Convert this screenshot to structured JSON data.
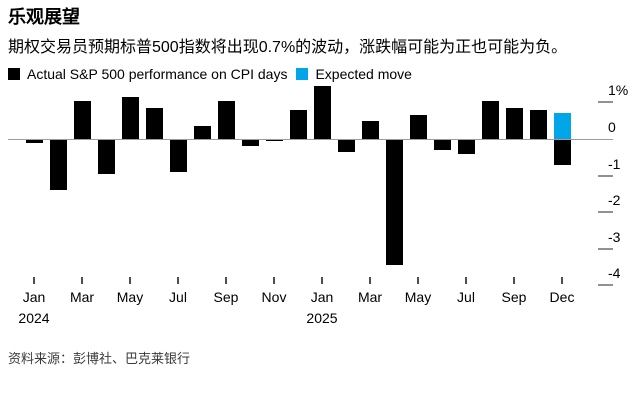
{
  "header": {
    "title": "乐观展望",
    "subtitle": "期权交易员预期标普500指数将出现0.7%的波动，涨跌幅可能为正也可能为负。"
  },
  "legend": {
    "items": [
      {
        "id": "actual",
        "label": "Actual S&P 500 performance on CPI days",
        "color": "#000000"
      },
      {
        "id": "expected",
        "label": "Expected move",
        "color": "#00a6e8"
      }
    ]
  },
  "chart_data": {
    "type": "bar",
    "title": "乐观展望",
    "unit": "%",
    "ylim": [
      -4.15,
      1.55
    ],
    "grid": false,
    "legend_position": "top-left",
    "series_colors": {
      "actual": "#000000",
      "expected": "#00a6e8",
      "expected_downside": "#000000"
    },
    "y_axis": {
      "side": "right",
      "ticks": [
        {
          "value": 1,
          "label": "1%"
        },
        {
          "value": 0,
          "label": "0"
        },
        {
          "value": -1,
          "label": "-1"
        },
        {
          "value": -2,
          "label": "-2"
        },
        {
          "value": -3,
          "label": "-3"
        },
        {
          "value": -4,
          "label": "-4"
        }
      ]
    },
    "x_axis": {
      "ticks": [
        {
          "index": 0,
          "label": "Jan",
          "year": "2024"
        },
        {
          "index": 2,
          "label": "Mar"
        },
        {
          "index": 4,
          "label": "May"
        },
        {
          "index": 6,
          "label": "Jul"
        },
        {
          "index": 8,
          "label": "Sep"
        },
        {
          "index": 10,
          "label": "Nov"
        },
        {
          "index": 12,
          "label": "Jan",
          "year": "2025"
        },
        {
          "index": 14,
          "label": "Mar"
        },
        {
          "index": 16,
          "label": "May"
        },
        {
          "index": 18,
          "label": "Jul"
        },
        {
          "index": 20,
          "label": "Sep"
        },
        {
          "index": 22,
          "label": "Dec"
        }
      ]
    },
    "bars": [
      {
        "index": 0,
        "month": "Jan 2024",
        "value": -0.1,
        "series": "actual"
      },
      {
        "index": 1,
        "month": "Feb 2024",
        "value": -1.4,
        "series": "actual"
      },
      {
        "index": 2,
        "month": "Mar 2024",
        "value": 1.05,
        "series": "actual"
      },
      {
        "index": 3,
        "month": "Apr 2024",
        "value": -0.95,
        "series": "actual"
      },
      {
        "index": 4,
        "month": "May 2024",
        "value": 1.15,
        "series": "actual"
      },
      {
        "index": 5,
        "month": "Jun 2024",
        "value": 0.85,
        "series": "actual"
      },
      {
        "index": 6,
        "month": "Jul 2024",
        "value": -0.9,
        "series": "actual"
      },
      {
        "index": 7,
        "month": "Aug 2024",
        "value": 0.35,
        "series": "actual"
      },
      {
        "index": 8,
        "month": "Sep 2024",
        "value": 1.05,
        "series": "actual"
      },
      {
        "index": 9,
        "month": "Oct 2024",
        "value": -0.2,
        "series": "actual"
      },
      {
        "index": 10,
        "month": "Nov 2024",
        "value": -0.05,
        "series": "actual"
      },
      {
        "index": 11,
        "month": "Dec 2024",
        "value": 0.8,
        "series": "actual"
      },
      {
        "index": 12,
        "month": "Jan 2025",
        "value": 1.45,
        "series": "actual"
      },
      {
        "index": 13,
        "month": "Feb 2025",
        "value": -0.35,
        "series": "actual"
      },
      {
        "index": 14,
        "month": "Mar 2025",
        "value": 0.5,
        "series": "actual"
      },
      {
        "index": 15,
        "month": "Apr 2025",
        "value": -3.45,
        "series": "actual"
      },
      {
        "index": 16,
        "month": "May 2025",
        "value": 0.65,
        "series": "actual"
      },
      {
        "index": 17,
        "month": "Jun 2025",
        "value": -0.3,
        "series": "actual"
      },
      {
        "index": 18,
        "month": "Jul 2025",
        "value": -0.4,
        "series": "actual"
      },
      {
        "index": 19,
        "month": "Aug 2025",
        "value": 1.05,
        "series": "actual"
      },
      {
        "index": 20,
        "month": "Sep 2025",
        "value": 0.85,
        "series": "actual"
      },
      {
        "index": 21,
        "month": "Oct 2025",
        "value": 0.8,
        "series": "actual"
      },
      {
        "index": 22,
        "month": "Dec 2025",
        "value": 0.7,
        "series": "expected"
      },
      {
        "index": 22,
        "month": "Dec 2025",
        "value": -0.7,
        "series": "expected_downside"
      }
    ]
  },
  "footer": {
    "source": "资料来源：彭博社、巴克莱银行"
  }
}
